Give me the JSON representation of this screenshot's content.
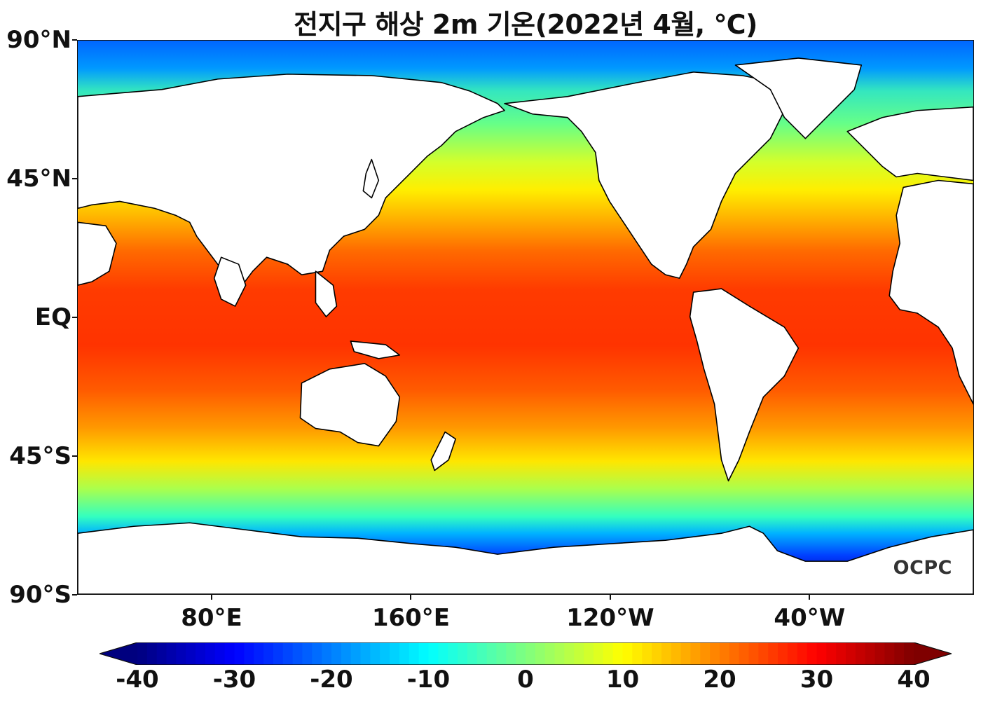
{
  "title": "전지구 해상 2m 기온(2022년 4월, ℃)",
  "map": {
    "projection": "equirectangular",
    "center_longitude": "180",
    "lat_ticks": [
      {
        "lat": 90,
        "label": "90°N"
      },
      {
        "lat": 45,
        "label": "45°N"
      },
      {
        "lat": 0,
        "label": "EQ"
      },
      {
        "lat": -45,
        "label": "45°S"
      },
      {
        "lat": -90,
        "label": "90°S"
      }
    ],
    "lon_ticks": [
      {
        "lon": 80,
        "label": "80°E"
      },
      {
        "lon": 160,
        "label": "160°E"
      },
      {
        "lon": 240,
        "label": "120°W"
      },
      {
        "lon": 320,
        "label": "40°W"
      }
    ],
    "land_color": "#ffffff",
    "coastline_color": "#000000",
    "watermark": "OCPC"
  },
  "colorbar": {
    "min": -40,
    "max": 40,
    "ticks": [
      "-40",
      "-30",
      "-20",
      "-10",
      "0",
      "10",
      "20",
      "30",
      "40"
    ],
    "colormap": "jet",
    "extend": "both",
    "colors": [
      "#00007f",
      "#0000ff",
      "#007fff",
      "#00ffff",
      "#7fff7f",
      "#ffff00",
      "#ff7f00",
      "#ff0000",
      "#7f0000"
    ]
  }
}
